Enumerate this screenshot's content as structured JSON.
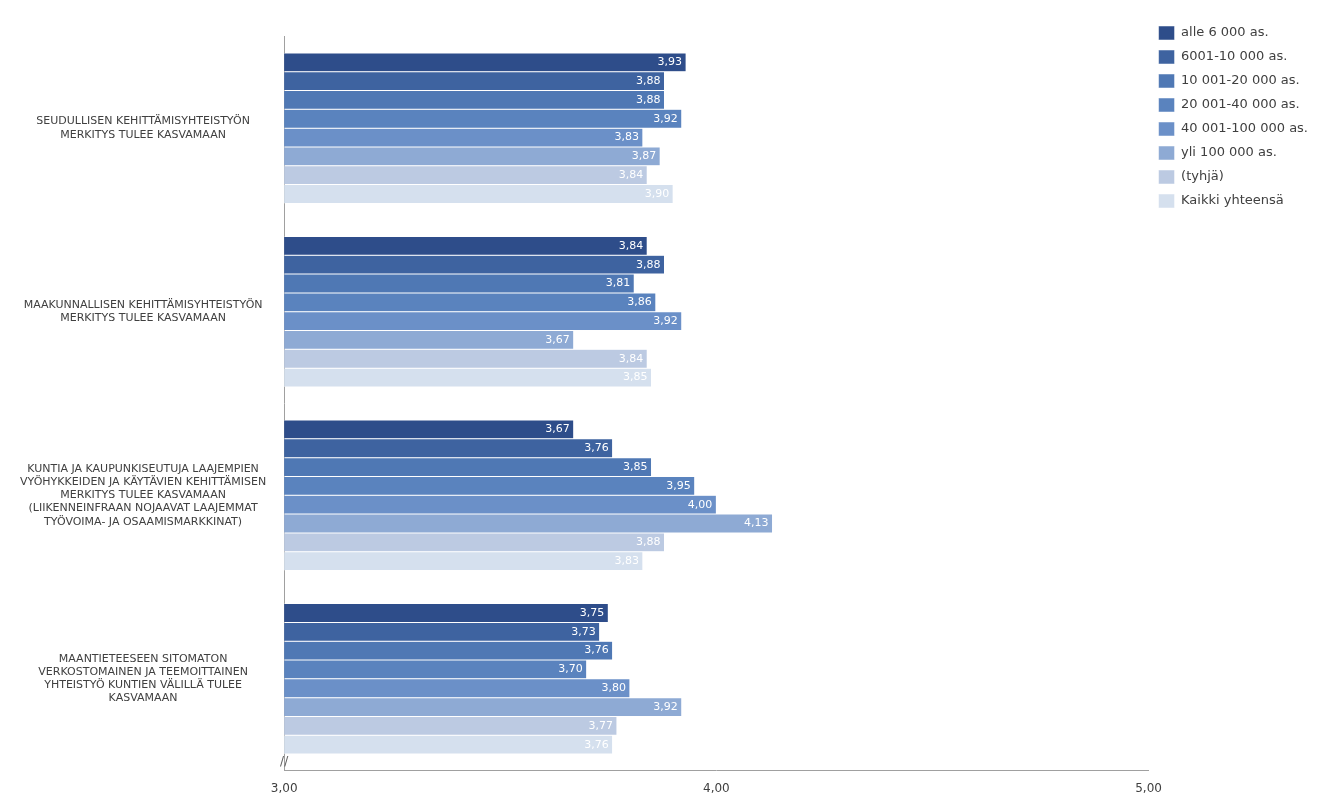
{
  "chart_data": {
    "type": "bar",
    "orientation": "horizontal",
    "categories": [
      "SEUDULLISEN KEHITTÄMISYHTEISTYÖN\nMERKITYS TULEE KASVAMAAN",
      "MAAKUNNALLISEN KEHITTÄMISYHTEISTYÖN\nMERKITYS TULEE KASVAMAAN",
      "KUNTIA JA KAUPUNKISEUTUJA LAAJEMPIEN\nVYÖHYKKEIDEN JA KÄYTÄVIEN KEHITTÄMISEN\nMERKITYS TULEE KASVAMAAN\n(LIIKENNEINFRAAN NOJAAVAT LAAJEMMAT\nTYÖVOIMA- JA OSAAMISMARKKINAT)",
      "MAANTIETEESEEN SITOMATON\nVERKOSTOMAINEN JA TEEMOITTAINEN\nYHTEISTYÖ KUNTIEN VÄLILLÄ TULEE\nKASVAMAAN"
    ],
    "series": [
      {
        "name": "alle 6 000 as.",
        "color": "#2E4D8A",
        "values": [
          3.93,
          3.84,
          3.67,
          3.75
        ],
        "value_labels": [
          "3,93",
          "3,84",
          "3,67",
          "3,75"
        ]
      },
      {
        "name": "6001-10 000 as.",
        "color": "#3E63A0",
        "values": [
          3.88,
          3.88,
          3.76,
          3.73
        ],
        "value_labels": [
          "3,88",
          "3,88",
          "3,76",
          "3,73"
        ]
      },
      {
        "name": "10 001-20 000 as.",
        "color": "#4F78B4",
        "values": [
          3.88,
          3.81,
          3.85,
          3.76
        ],
        "value_labels": [
          "3,88",
          "3,81",
          "3,85",
          "3,76"
        ]
      },
      {
        "name": "20 001-40 000 as.",
        "color": "#5A83BE",
        "values": [
          3.92,
          3.86,
          3.95,
          3.7
        ],
        "value_labels": [
          "3,92",
          "3,86",
          "3,95",
          "3,70"
        ]
      },
      {
        "name": "40 001-100 000 as.",
        "color": "#6B90C8",
        "values": [
          3.83,
          3.92,
          4.0,
          3.8
        ],
        "value_labels": [
          "3,83",
          "3,92",
          "4,00",
          "3,80"
        ]
      },
      {
        "name": "yli 100 000 as.",
        "color": "#8EAAD4",
        "values": [
          3.87,
          3.67,
          4.13,
          3.92
        ],
        "value_labels": [
          "3,87",
          "3,67",
          "4,13",
          "3,92"
        ]
      },
      {
        "name": "(tyhjä)",
        "color": "#BCCAE2",
        "values": [
          3.84,
          3.84,
          3.88,
          3.77
        ],
        "value_labels": [
          "3,84",
          "3,84",
          "3,88",
          "3,77"
        ]
      },
      {
        "name": "Kaikki yhteensä",
        "color": "#D5E0EE",
        "values": [
          3.9,
          3.85,
          3.83,
          3.76
        ],
        "value_labels": [
          "3,90",
          "3,85",
          "3,83",
          "3,76"
        ]
      }
    ],
    "xlim": [
      3.0,
      5.0
    ],
    "xticks": [
      {
        "value": 3.0,
        "label": "3,00"
      },
      {
        "value": 4.0,
        "label": "4,00"
      },
      {
        "value": 5.0,
        "label": "5,00"
      }
    ],
    "grid": false,
    "legend": "right",
    "data_labels": true,
    "annotations": [
      "//"
    ]
  }
}
